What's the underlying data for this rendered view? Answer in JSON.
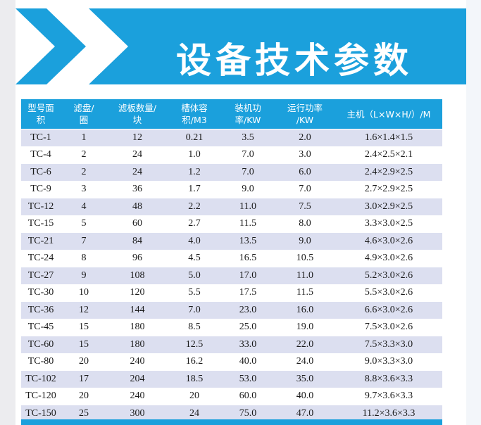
{
  "banner": {
    "title": "设备技术参数",
    "color": "#1ba0dc"
  },
  "table": {
    "headers": [
      [
        "型号面",
        "积"
      ],
      [
        "滤盘/",
        "圈"
      ],
      [
        "滤板数量/",
        "块"
      ],
      [
        "槽体容",
        "积/M3"
      ],
      [
        "装机功",
        "率/KW"
      ],
      [
        "运行功率",
        "/KW"
      ],
      [
        "主机（L×W×H/）/M"
      ]
    ],
    "rows": [
      [
        "TC-1",
        "1",
        "12",
        "0.21",
        "3.5",
        "2.0",
        "1.6×1.4×1.5"
      ],
      [
        "TC-4",
        "2",
        "24",
        "1.0",
        "7.0",
        "3.0",
        "2.4×2.5×2.1"
      ],
      [
        "TC-6",
        "2",
        "24",
        "1.2",
        "7.0",
        "6.0",
        "2.4×2.9×2.5"
      ],
      [
        "TC-9",
        "3",
        "36",
        "1.7",
        "9.0",
        "7.0",
        "2.7×2.9×2.5"
      ],
      [
        "TC-12",
        "4",
        "48",
        "2.2",
        "11.0",
        "7.5",
        "3.0×2.9×2.5"
      ],
      [
        "TC-15",
        "5",
        "60",
        "2.7",
        "11.5",
        "8.0",
        "3.3×3.0×2.5"
      ],
      [
        "TC-21",
        "7",
        "84",
        "4.0",
        "13.5",
        "9.0",
        "4.6×3.0×2.6"
      ],
      [
        "TC-24",
        "8",
        "96",
        "4.5",
        "16.5",
        "10.5",
        "4.9×3.0×2.6"
      ],
      [
        "TC-27",
        "9",
        "108",
        "5.0",
        "17.0",
        "11.0",
        "5.2×3.0×2.6"
      ],
      [
        "TC-30",
        "10",
        "120",
        "5.5",
        "17.5",
        "11.5",
        "5.5×3.0×2.6"
      ],
      [
        "TC-36",
        "12",
        "144",
        "7.0",
        "23.0",
        "16.0",
        "6.6×3.0×2.6"
      ],
      [
        "TC-45",
        "15",
        "180",
        "8.5",
        "25.0",
        "19.0",
        "7.5×3.0×2.6"
      ],
      [
        "TC-60",
        "15",
        "180",
        "12.5",
        "33.0",
        "22.0",
        "7.5×3.3×3.0"
      ],
      [
        "TC-80",
        "20",
        "240",
        "16.2",
        "40.0",
        "24.0",
        "9.0×3.3×3.0"
      ],
      [
        "TC-102",
        "17",
        "204",
        "18.5",
        "53.0",
        "35.0",
        "8.8×3.6×3.3"
      ],
      [
        "TC-120",
        "20",
        "240",
        "20",
        "60.0",
        "40.0",
        "9.7×3.6×3.3"
      ],
      [
        "TC-150",
        "25",
        "300",
        "24",
        "75.0",
        "47.0",
        "11.2×3.6×3.3"
      ]
    ]
  }
}
